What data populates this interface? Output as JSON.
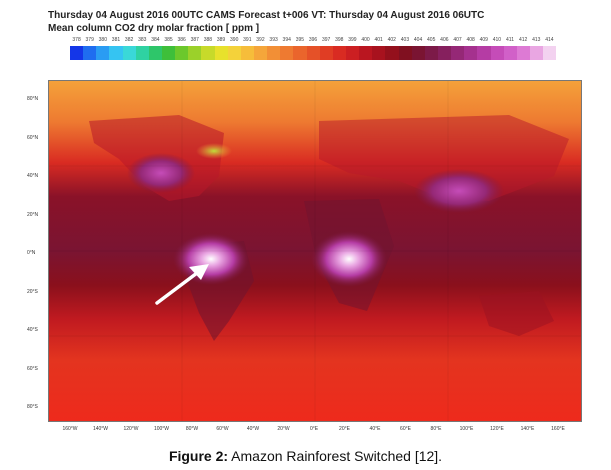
{
  "header": {
    "line1": "Thursday 04 August 2016 00UTC CAMS Forecast t+006 VT: Thursday 04 August 2016 06UTC",
    "line2": "Mean column CO2 dry molar fraction [ ppm ]"
  },
  "colorbar": {
    "ticks": [
      "378",
      "379",
      "380",
      "381",
      "382",
      "383",
      "384",
      "385",
      "386",
      "387",
      "388",
      "389",
      "390",
      "391",
      "392",
      "393",
      "394",
      "395",
      "396",
      "397",
      "398",
      "399",
      "400",
      "401",
      "402",
      "403",
      "404",
      "405",
      "406",
      "407",
      "408",
      "409",
      "410",
      "411",
      "412",
      "413",
      "414"
    ],
    "colors": [
      "#1436e8",
      "#1f6df0",
      "#2a9cf3",
      "#35c4f2",
      "#3ad8d8",
      "#2fd2a2",
      "#2ec66a",
      "#3ebf3a",
      "#6cc82c",
      "#9bd12a",
      "#c7da2a",
      "#e8e12c",
      "#f4d23a",
      "#f6bd3a",
      "#f5a63a",
      "#f28f36",
      "#ee7a31",
      "#ea652c",
      "#e55128",
      "#e03d24",
      "#d92b22",
      "#cc1f22",
      "#ba1620",
      "#a8121e",
      "#94101c",
      "#801020",
      "#7a1432",
      "#7c1a48",
      "#86205e",
      "#952876",
      "#a5318e",
      "#b53ca4",
      "#c54cb8",
      "#d160c8",
      "#dd7ad4",
      "#e9a6e2",
      "#f3d2f0"
    ]
  },
  "map": {
    "lat_labels": [
      "80°N",
      "60°N",
      "40°N",
      "20°N",
      "0°N",
      "20°S",
      "40°S",
      "60°S",
      "80°S"
    ],
    "lon_labels": [
      "160°W",
      "140°W",
      "120°W",
      "100°W",
      "80°W",
      "60°W",
      "40°W",
      "20°W",
      "0°E",
      "20°E",
      "40°E",
      "60°E",
      "80°E",
      "100°E",
      "120°E",
      "140°E",
      "160°E"
    ]
  },
  "caption": {
    "label": "Figure 2:",
    "text": " Amazon Rainforest Switched [12]."
  }
}
